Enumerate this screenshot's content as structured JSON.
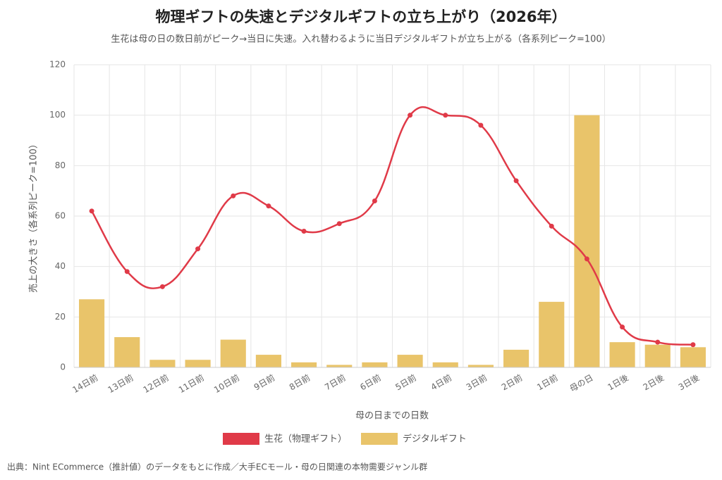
{
  "chart_data": {
    "type": "bar",
    "title": "物理ギフトの失速とデジタルギフトの立ち上がり（2026年）",
    "subtitle": "生花は母の日の数日前がピーク→当日に失速。入れ替わるように当日デジタルギフトが立ち上がる（各系列ピーク=100）",
    "x_label": "母の日までの日数",
    "y_label": "売上の大きさ（各系列ピーク=100）",
    "source": "出典：Nint ECommerce（推計値）のデータをもとに作成／大手ECモール・母の日関連の本物需要ジャンル群",
    "categories": [
      "14日前",
      "13日前",
      "12日前",
      "11日前",
      "10日前",
      "9日前",
      "8日前",
      "7日前",
      "6日前",
      "5日前",
      "4日前",
      "3日前",
      "2日前",
      "1日前",
      "母の日",
      "1日後",
      "2日後",
      "3日後"
    ],
    "series": [
      {
        "name": "生花（物理ギフト）",
        "type": "line",
        "color": "#e03a48",
        "values": [
          62,
          38,
          32,
          47,
          68,
          64,
          54,
          57,
          66,
          100,
          100,
          96,
          74,
          56,
          43,
          16,
          10,
          9
        ]
      },
      {
        "name": "デジタルギフト",
        "type": "bar",
        "color": "#e9c46a",
        "values": [
          27,
          12,
          3,
          3,
          11,
          5,
          2,
          1,
          2,
          5,
          2,
          1,
          7,
          26,
          100,
          10,
          9,
          8
        ]
      }
    ],
    "ylim": [
      0,
      120
    ],
    "yticks": [
      0,
      20,
      40,
      60,
      80,
      100,
      120
    ],
    "grid": true,
    "legend": "bottom"
  }
}
